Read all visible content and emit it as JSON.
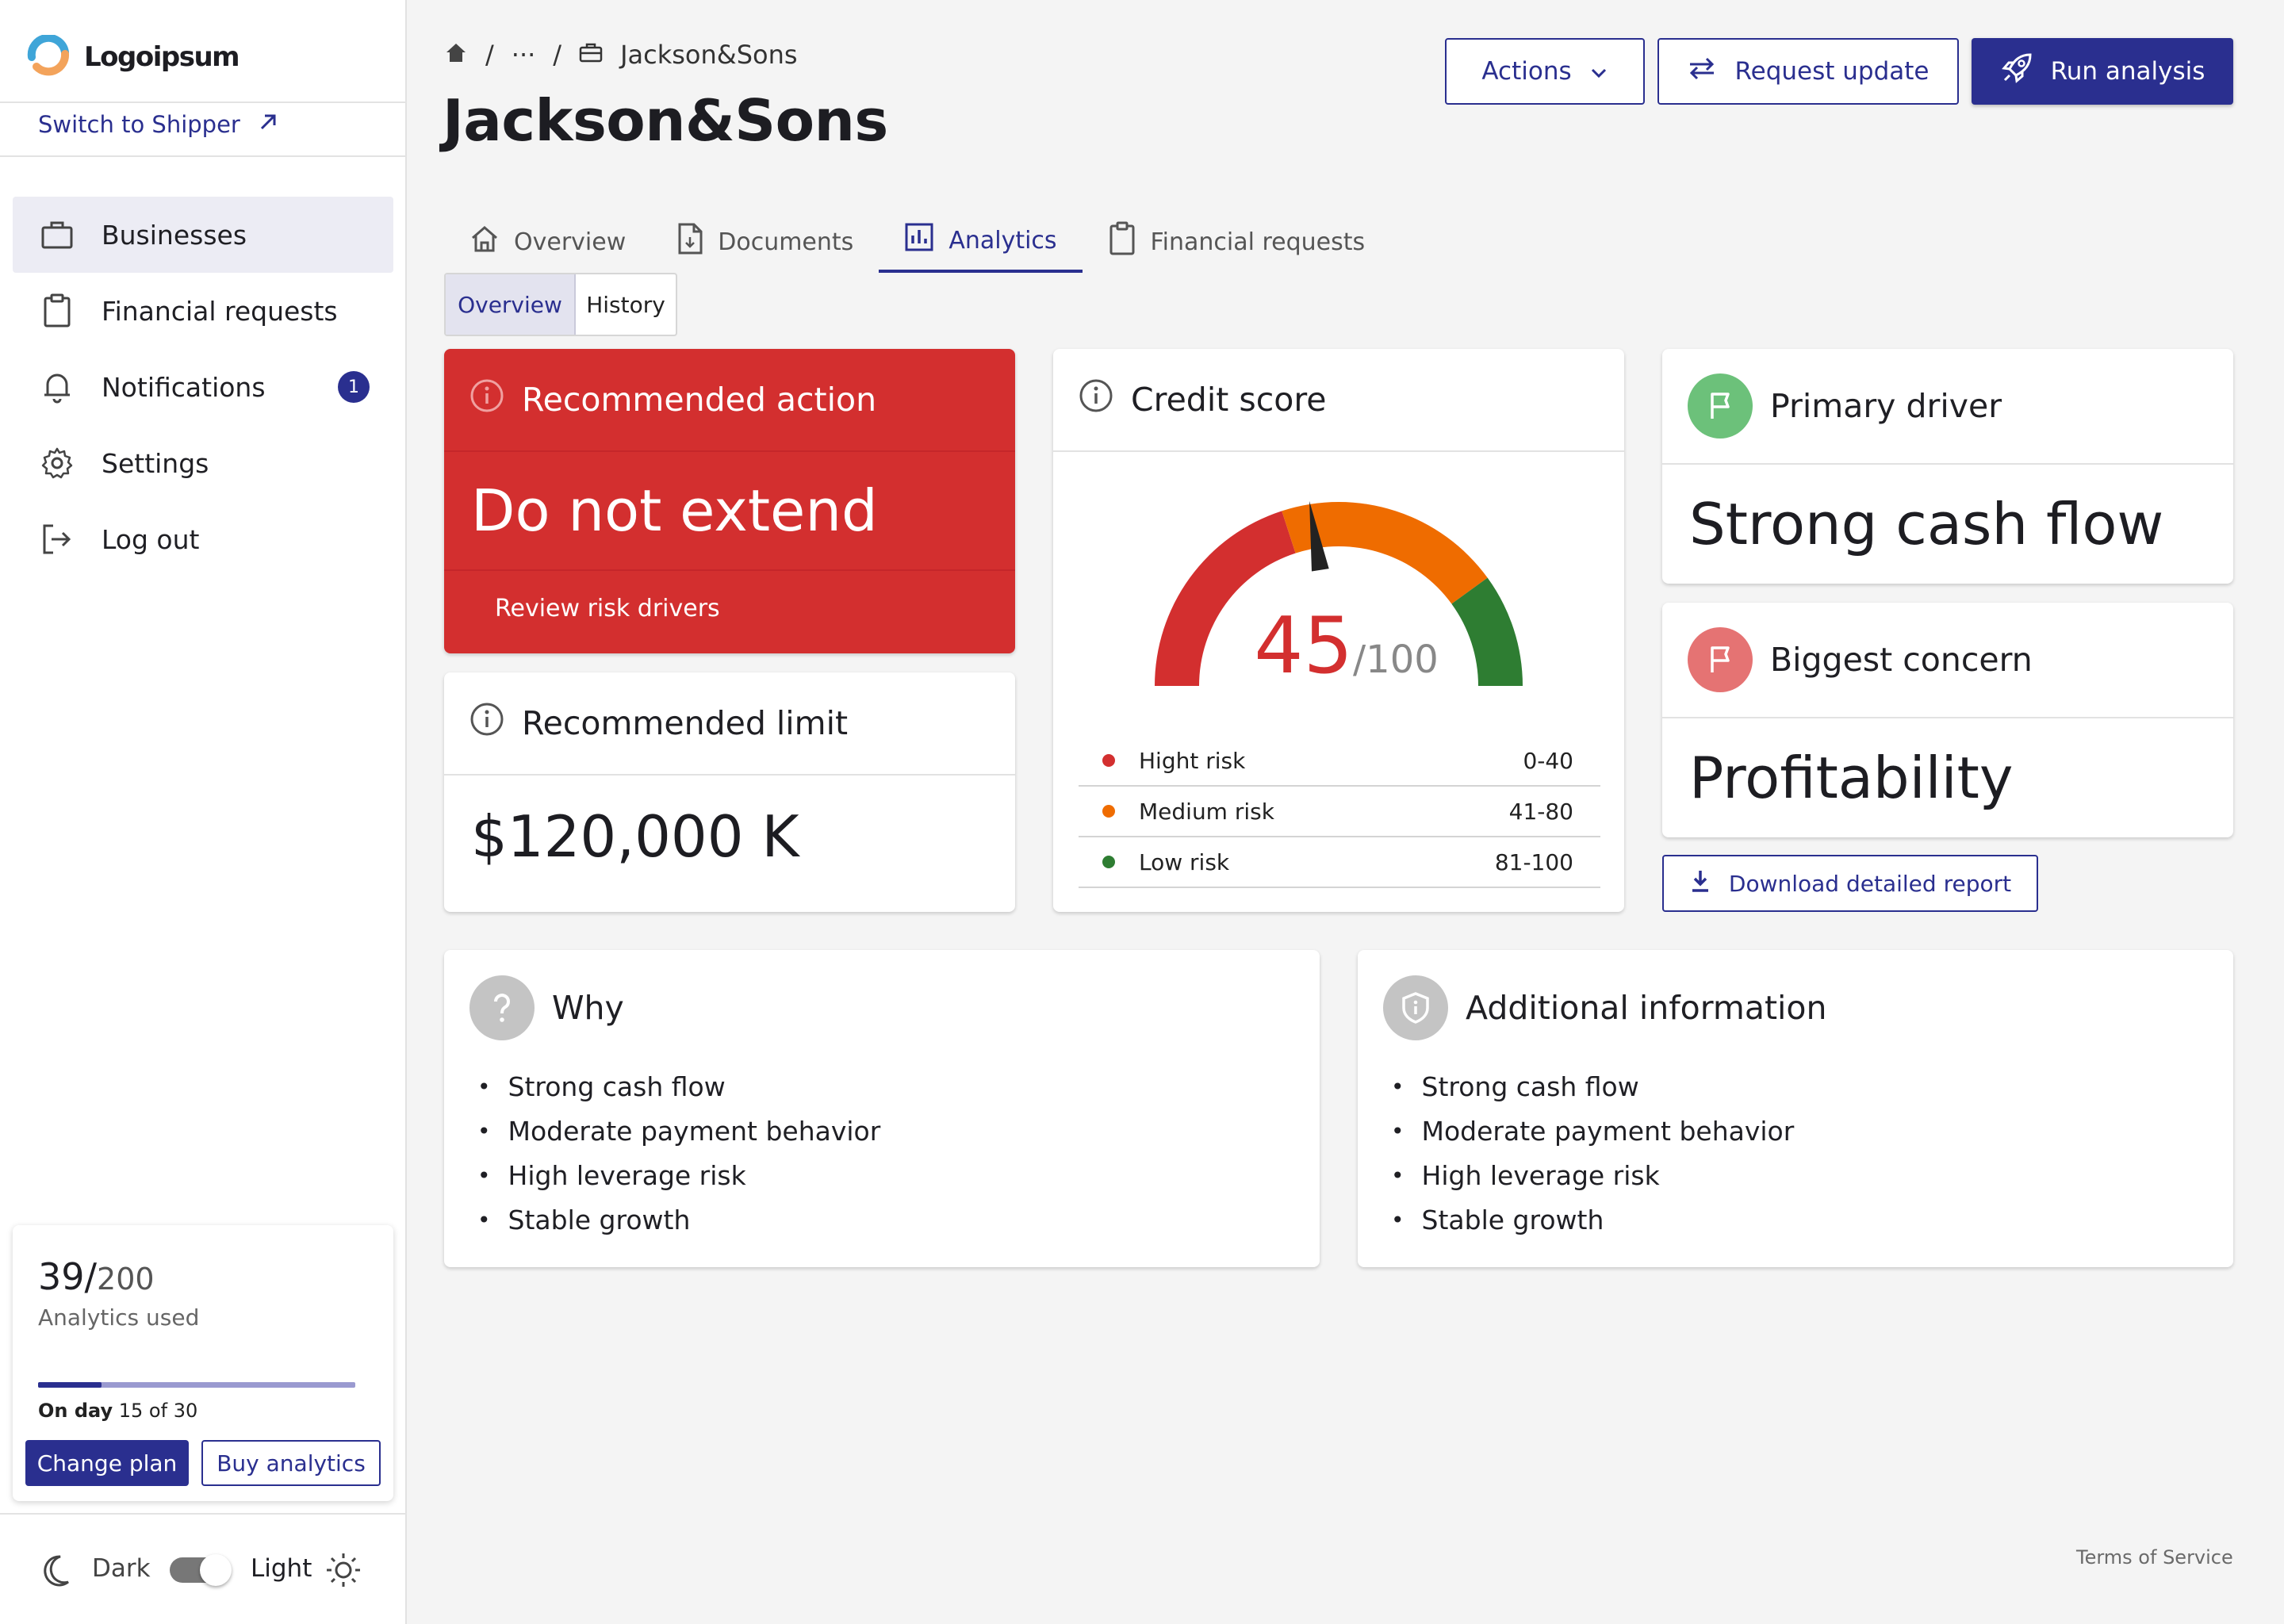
{
  "brand": {
    "name": "Logoipsum"
  },
  "sidebar": {
    "switch_label": "Switch to Shipper",
    "items": [
      {
        "label": "Businesses",
        "icon": "briefcase-icon"
      },
      {
        "label": "Financial requests",
        "icon": "clipboard-icon"
      },
      {
        "label": "Notifications",
        "icon": "bell-icon",
        "badge": "1"
      },
      {
        "label": "Settings",
        "icon": "gear-icon"
      },
      {
        "label": "Log out",
        "icon": "logout-icon"
      }
    ],
    "usage": {
      "used": "39/",
      "total": "200",
      "label": "Analytics used",
      "progress": 0.2,
      "day_prefix": "On day",
      "day_text": "15 of 30",
      "change_plan": "Change plan",
      "buy_analytics": "Buy analytics"
    },
    "theme": {
      "dark": "Dark",
      "light": "Light",
      "mode": "light"
    }
  },
  "header": {
    "breadcrumb_sep": "/",
    "breadcrumb_more": "···",
    "breadcrumb_current": "Jackson&Sons",
    "title": "Jackson&Sons",
    "actions_label": "Actions",
    "request_update_label": "Request update",
    "run_analysis_label": "Run analysis"
  },
  "tabs": [
    {
      "label": "Overview",
      "icon": "home-icon"
    },
    {
      "label": "Documents",
      "icon": "document-icon"
    },
    {
      "label": "Analytics",
      "icon": "chart-icon",
      "active": true
    },
    {
      "label": "Financial requests",
      "icon": "clipboard-icon"
    }
  ],
  "subtabs": [
    {
      "label": "Overview",
      "active": true
    },
    {
      "label": "History"
    }
  ],
  "recommended_action": {
    "title": "Recommended action",
    "value": "Do not extend",
    "link": "Review risk drivers"
  },
  "recommended_limit": {
    "title": "Recommended limit",
    "value": "$120,000 K"
  },
  "credit_score": {
    "title": "Credit score",
    "score": "45",
    "max": "/100",
    "score_value": 45,
    "legend": [
      {
        "label": "Hight risk",
        "range": "0-40",
        "color": "#d32f2f"
      },
      {
        "label": "Medium risk",
        "range": "41-80",
        "color": "#ef6c00"
      },
      {
        "label": "Low risk",
        "range": "81-100",
        "color": "#2e7d32"
      }
    ]
  },
  "primary_driver": {
    "title": "Primary driver",
    "value": "Strong cash flow",
    "color": "#6cc17a"
  },
  "biggest_concern": {
    "title": "Biggest concern",
    "value": "Profitability",
    "color": "#e57373"
  },
  "download_label": "Download detailed report",
  "why": {
    "title": "Why",
    "items": [
      "Strong cash flow",
      "Moderate payment behavior",
      "High leverage risk",
      "Stable growth"
    ]
  },
  "additional": {
    "title": "Additional information",
    "items": [
      "Strong cash flow",
      "Moderate payment behavior",
      "High leverage risk",
      "Stable growth"
    ]
  },
  "footer": {
    "terms": "Terms of Service"
  },
  "colors": {
    "accent": "#2a2f8f",
    "danger": "#d32f2f",
    "warning": "#ef6c00",
    "success": "#2e7d32"
  }
}
